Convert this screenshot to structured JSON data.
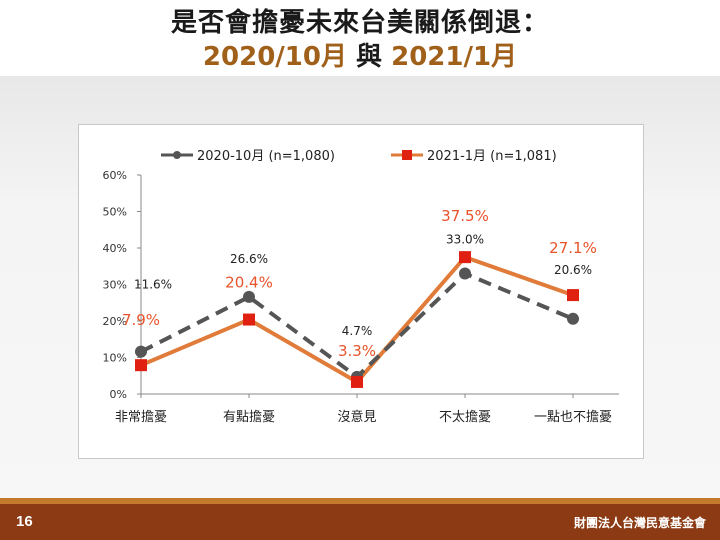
{
  "slide": {
    "title_line1": "是否會擔憂未來台美關係倒退：",
    "title_part1": "2020/10月",
    "title_join": "與",
    "title_part2": "2021/1月",
    "page_number": "16",
    "organization": "財團法人台灣民意基金會"
  },
  "colors": {
    "series_2020": "#555555",
    "series_2021": "#e07b39",
    "marker_2021": "#e02010",
    "label_2021": "#e8542a",
    "title_accent": "#a0601a",
    "footer": "#8b3a14"
  },
  "chart_data": {
    "type": "line",
    "categories": [
      "非常擔憂",
      "有點擔憂",
      "沒意見",
      "不太擔憂",
      "一點也不擔憂"
    ],
    "yticks": [
      "0%",
      "10%",
      "20%",
      "30%",
      "40%",
      "50%",
      "60%"
    ],
    "ylim": [
      0,
      60
    ],
    "grid": false,
    "legend_position": "top",
    "series": [
      {
        "name": "2020-10月 (n=1,080)",
        "values": [
          11.6,
          26.6,
          4.7,
          33.0,
          20.6
        ],
        "labels": [
          "11.6%",
          "26.6%",
          "4.7%",
          "33.0%",
          "20.6%"
        ],
        "style": "dashed",
        "marker": "circle"
      },
      {
        "name": "2021-1月 (n=1,081)",
        "values": [
          7.9,
          20.4,
          3.3,
          37.5,
          27.1
        ],
        "labels": [
          "7.9%",
          "20.4%",
          "3.3%",
          "37.5%",
          "27.1%"
        ],
        "style": "solid",
        "marker": "square"
      }
    ]
  }
}
